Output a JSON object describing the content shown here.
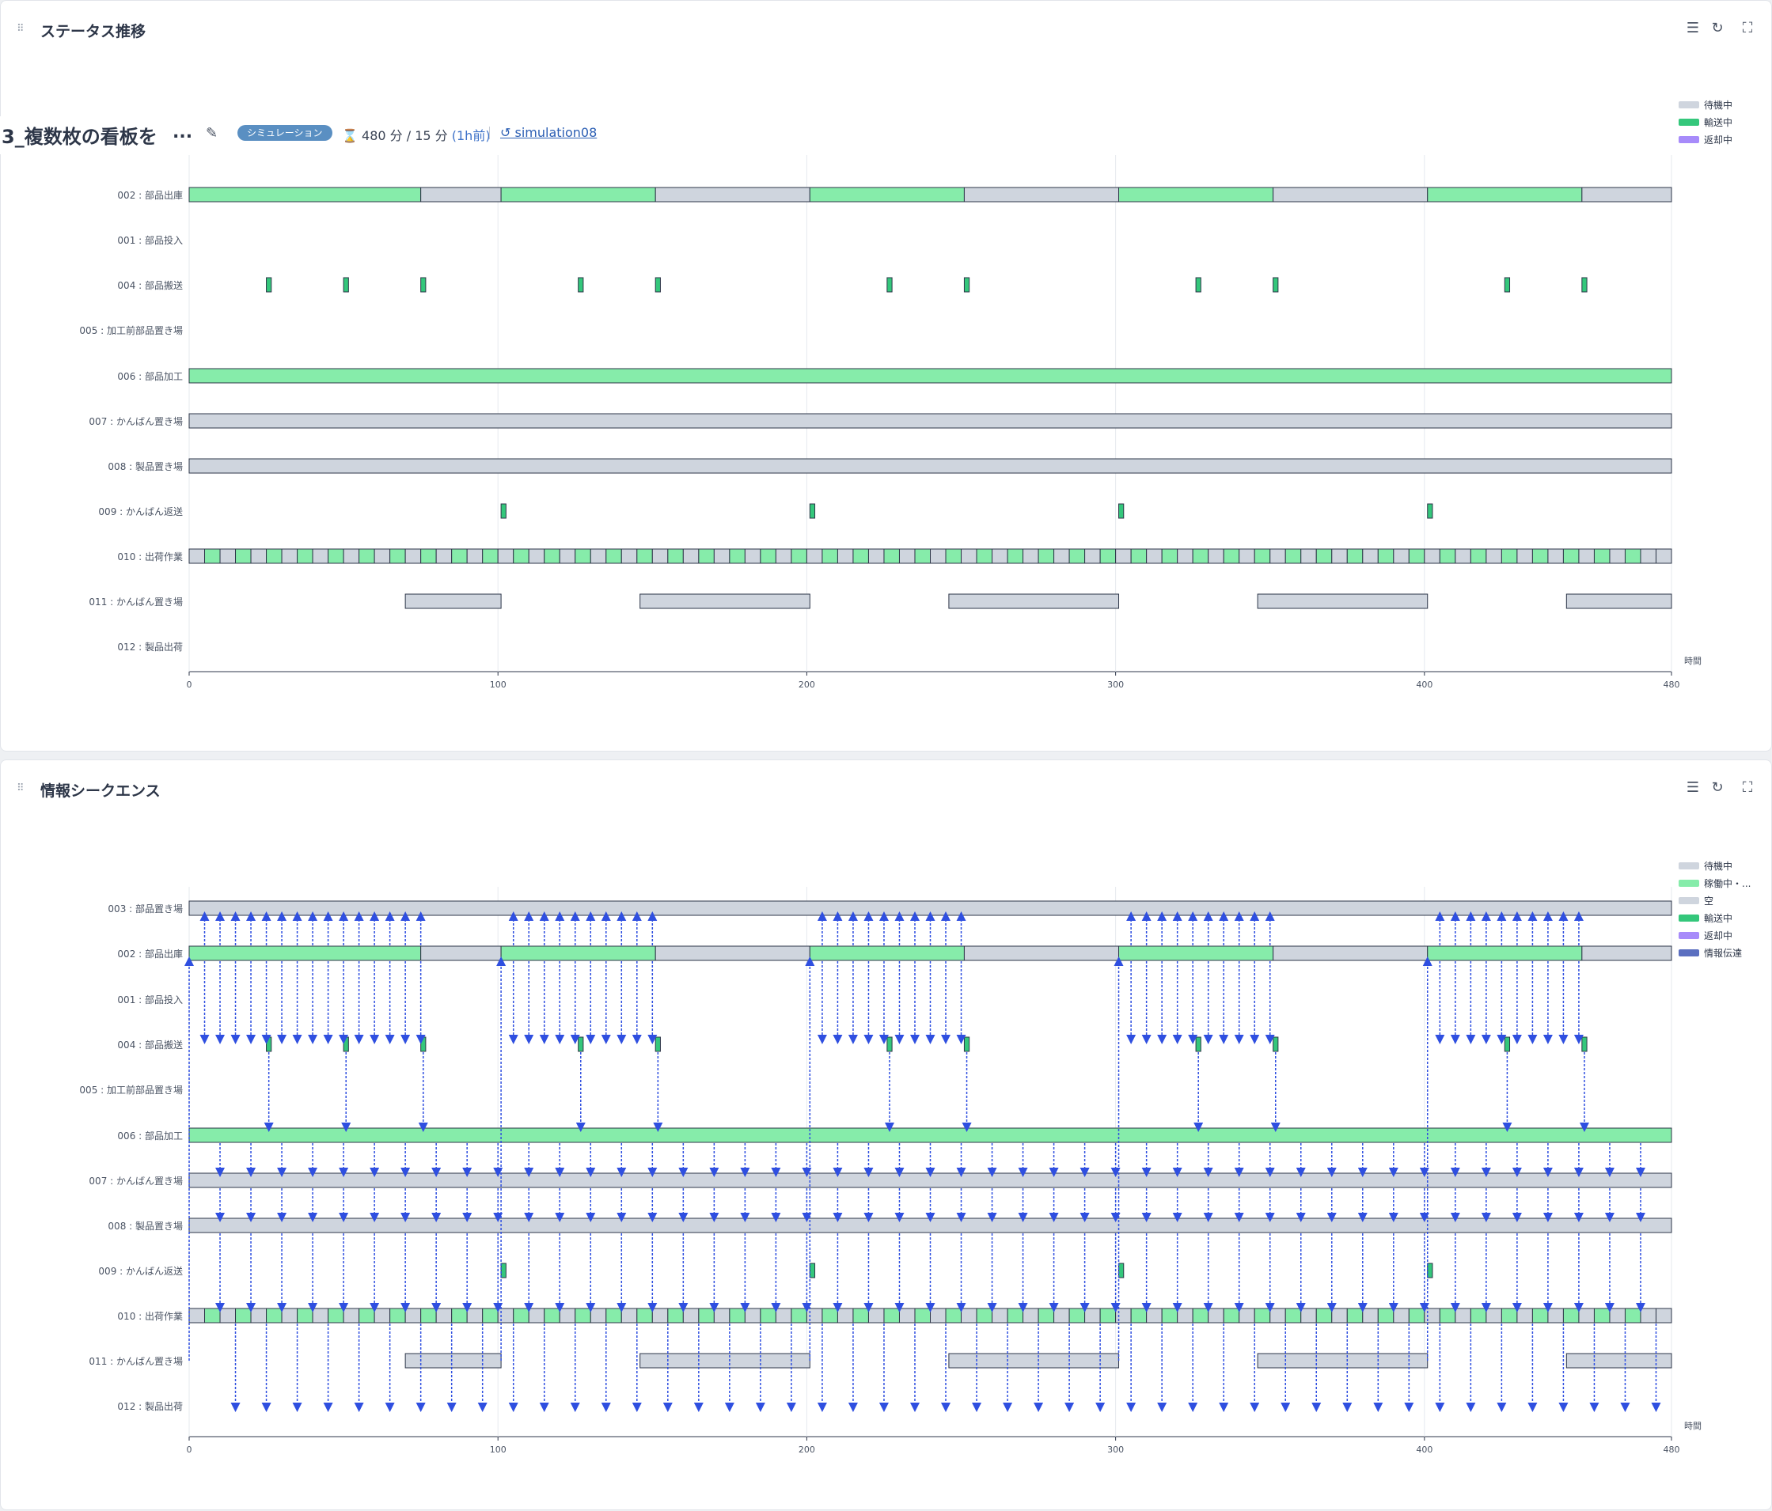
{
  "panel1": {
    "title": "ステータス推移",
    "legend": [
      "待機中",
      "輸送中",
      "返却中"
    ]
  },
  "panel2": {
    "title": "情報シークエンス",
    "legend": [
      "待機中",
      "稼働中・...",
      "空",
      "輸送中",
      "返却中",
      "情報伝達"
    ]
  },
  "header": {
    "title": "3_複数枚の看板を",
    "ellipsis": "...",
    "badge": "シミュレーション",
    "time_text": "480 分 / 15 分",
    "time_ago": "(1h前)",
    "sim_link": "simulation08"
  },
  "icons": [
    "drag-handle-icon",
    "list-icon",
    "refresh-icon",
    "fullscreen-icon",
    "edit-icon",
    "hourglass-icon",
    "history-icon"
  ],
  "colors": {
    "waiting": "#cfd5de",
    "running": "#86ecaa",
    "empty": "#cfd5de",
    "transport": "#34c77b",
    "return": "#a78bfa",
    "info": "#5b6fc0",
    "arrow": "#2f4fe0",
    "badge": "#5a8fc2"
  },
  "chart_data": [
    {
      "type": "gantt",
      "xlabel": "時間",
      "xlim": [
        0,
        480
      ],
      "xticks": [
        0,
        100,
        200,
        300,
        400,
        480
      ],
      "rows": [
        "002 : 部品出庫",
        "001 : 部品投入",
        "004 : 部品搬送",
        "005 : 加工前部品置き場",
        "006 : 部品加工",
        "007 : かんばん置き場",
        "008 : 製品置き場",
        "009 : かんばん返送",
        "010 : 出荷作業",
        "011 : かんばん置き場",
        "012 : 製品出荷"
      ]
    },
    {
      "type": "gantt",
      "xlabel": "時間",
      "xlim": [
        0,
        480
      ],
      "xticks": [
        0,
        100,
        200,
        300,
        400,
        480
      ],
      "rows": [
        "003 : 部品置き場",
        "002 : 部品出庫",
        "001 : 部品投入",
        "004 : 部品搬送",
        "005 : 加工前部品置き場",
        "006 : 部品加工",
        "007 : かんばん置き場",
        "008 : 製品置き場",
        "009 : かんばん返送",
        "010 : 出荷作業",
        "011 : かんばん置き場",
        "012 : 製品出荷"
      ]
    }
  ]
}
